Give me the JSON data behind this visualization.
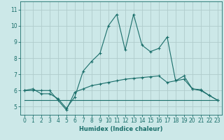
{
  "title": "",
  "xlabel": "Humidex (Indice chaleur)",
  "background_color": "#cce8e8",
  "line_color": "#1a6e6a",
  "grid_color": "#b0cccc",
  "xlim": [
    -0.5,
    23.5
  ],
  "ylim": [
    4.5,
    11.5
  ],
  "xticks": [
    0,
    1,
    2,
    3,
    4,
    5,
    6,
    7,
    8,
    9,
    10,
    11,
    12,
    13,
    14,
    15,
    16,
    17,
    18,
    19,
    20,
    21,
    22,
    23
  ],
  "yticks": [
    5,
    6,
    7,
    8,
    9,
    10,
    11
  ],
  "line1_x": [
    0,
    1,
    2,
    3,
    4,
    5,
    6,
    7,
    8,
    9,
    10,
    11,
    12,
    13,
    14,
    15,
    16,
    17,
    18,
    19,
    20,
    21,
    22,
    23
  ],
  "line1_y": [
    6.0,
    6.1,
    5.8,
    5.8,
    5.5,
    4.9,
    5.6,
    7.2,
    7.8,
    8.3,
    10.0,
    10.7,
    8.5,
    10.7,
    8.8,
    8.4,
    8.6,
    9.3,
    6.6,
    6.9,
    6.1,
    6.0,
    5.7,
    5.4
  ],
  "line2_x": [
    0,
    1,
    2,
    3,
    4,
    5,
    6,
    7,
    8,
    9,
    10,
    11,
    12,
    13,
    14,
    15,
    16,
    17,
    18,
    19,
    20,
    21,
    22,
    23
  ],
  "line2_y": [
    6.0,
    6.0,
    6.0,
    6.0,
    5.4,
    4.8,
    5.9,
    6.1,
    6.3,
    6.4,
    6.5,
    6.6,
    6.7,
    6.75,
    6.8,
    6.85,
    6.9,
    6.5,
    6.6,
    6.7,
    6.1,
    6.05,
    5.7,
    5.4
  ],
  "line3_x": [
    0,
    23
  ],
  "line3_y": [
    5.4,
    5.4
  ]
}
